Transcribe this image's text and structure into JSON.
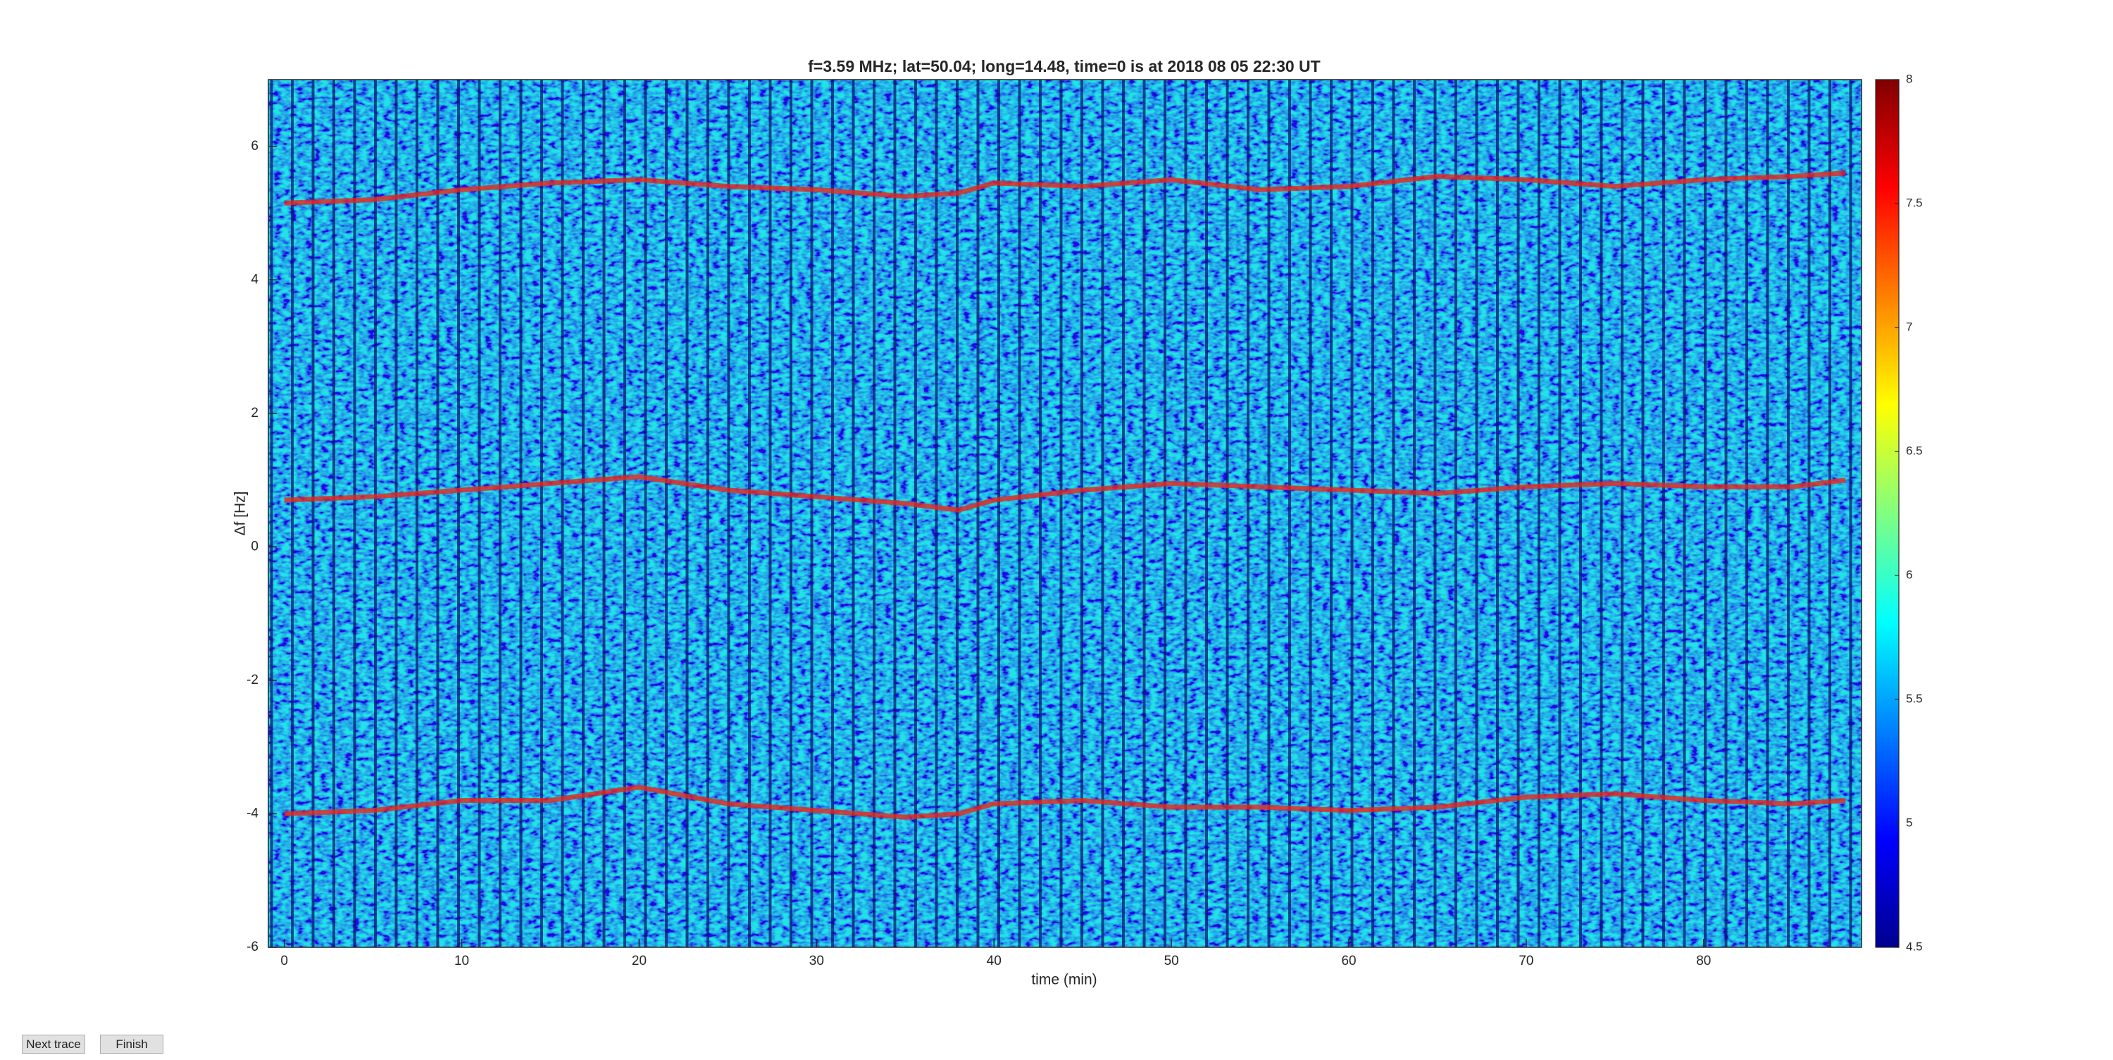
{
  "chart_data": {
    "type": "line",
    "title": "f=3.59 MHz;  lat=50.04; long=14.48, time=0 is at 2018 08 05 22:30 UT",
    "xlabel": "time (min)",
    "ylabel": "Δf [Hz]",
    "x": [
      0,
      5,
      10,
      15,
      20,
      25,
      30,
      35,
      38,
      40,
      45,
      50,
      55,
      60,
      65,
      70,
      75,
      80,
      85,
      88
    ],
    "series": [
      {
        "color": "#e8261c",
        "values": [
          5.15,
          5.2,
          5.35,
          5.45,
          5.5,
          5.4,
          5.35,
          5.25,
          5.3,
          5.45,
          5.4,
          5.5,
          5.35,
          5.4,
          5.55,
          5.5,
          5.4,
          5.5,
          5.55,
          5.6
        ]
      },
      {
        "color": "#e8261c",
        "values": [
          0.7,
          0.75,
          0.85,
          0.95,
          1.05,
          0.85,
          0.75,
          0.65,
          0.55,
          0.7,
          0.85,
          0.95,
          0.9,
          0.85,
          0.8,
          0.9,
          0.95,
          0.9,
          0.9,
          1.0
        ]
      },
      {
        "color": "#e8261c",
        "values": [
          -4.0,
          -3.95,
          -3.8,
          -3.8,
          -3.6,
          -3.85,
          -3.95,
          -4.05,
          -4.0,
          -3.85,
          -3.8,
          -3.9,
          -3.9,
          -3.95,
          -3.9,
          -3.75,
          -3.7,
          -3.8,
          -3.85,
          -3.8
        ]
      }
    ],
    "xlim": [
      -0.9,
      88.9
    ],
    "xticks": [
      0,
      10,
      20,
      30,
      40,
      50,
      60,
      70,
      80
    ],
    "ylim": [
      -6,
      7
    ],
    "yticks": [
      -6,
      -4,
      -2,
      0,
      2,
      4,
      6
    ],
    "colormap": "jet",
    "clim": [
      4.5,
      8
    ],
    "cticks": [
      4.5,
      5,
      5.5,
      6,
      6.5,
      7,
      7.5,
      8
    ]
  },
  "buttons": [
    "Next trace",
    "Finish"
  ]
}
